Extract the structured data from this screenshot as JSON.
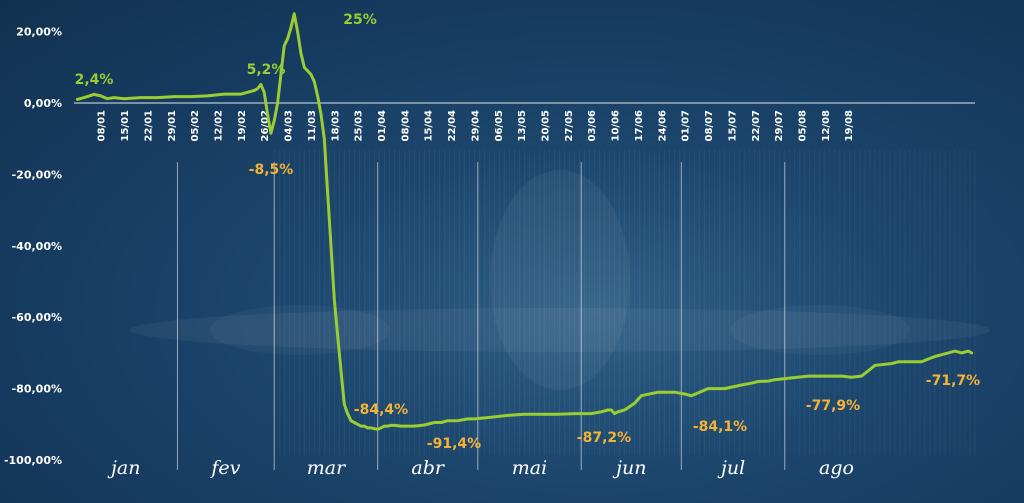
{
  "chart_data": {
    "type": "line",
    "colors": {
      "line": "#9acd32",
      "positive_label": "#9acd32",
      "negative_label": "#f5b335",
      "axis_text": "#ffffff",
      "background": "#173a5e"
    },
    "ylim": [
      -100,
      25
    ],
    "yticks": [
      "20,00%",
      "0,00%",
      "-20,00%",
      "-40,00%",
      "-60,00%",
      "-80,00%",
      "-100,00%"
    ],
    "xtick_labels": [
      "08/01",
      "15/01",
      "22/01",
      "29/01",
      "05/02",
      "12/02",
      "19/02",
      "26/02",
      "04/03",
      "11/03",
      "18/03",
      "25/03",
      "01/04",
      "08/04",
      "15/04",
      "22/04",
      "29/04",
      "06/05",
      "13/05",
      "20/05",
      "27/05",
      "03/06",
      "10/06",
      "17/06",
      "24/06",
      "01/07",
      "08/07",
      "15/07",
      "22/07",
      "29/07",
      "05/08",
      "12/08",
      "19/08"
    ],
    "months": [
      "jan",
      "fev",
      "mar",
      "abr",
      "mai",
      "jun",
      "jul",
      "ago"
    ],
    "series": [
      {
        "x": [
          1,
          3,
          6,
          8,
          10,
          12,
          15,
          20,
          25,
          30,
          35,
          40,
          45,
          50,
          52,
          54,
          55,
          56,
          57,
          58,
          59,
          60,
          61,
          62,
          63,
          64,
          65,
          66,
          67,
          68,
          69,
          70,
          71,
          72,
          73,
          74,
          75,
          76,
          77,
          78,
          79,
          80,
          81,
          82,
          83,
          84,
          85,
          86,
          87,
          88,
          89,
          90,
          91,
          92,
          93,
          94,
          95,
          96,
          98,
          100,
          102,
          105,
          108,
          110,
          112,
          115,
          118,
          120,
          125,
          130,
          135,
          140,
          145,
          150,
          155,
          158,
          160,
          161,
          162,
          163,
          165,
          168,
          170,
          175,
          180,
          183,
          185,
          190,
          195,
          200,
          203,
          205,
          208,
          210,
          215,
          220,
          225,
          230,
          233,
          236,
          238,
          240,
          245,
          247,
          250,
          252,
          254,
          256,
          258,
          260,
          262,
          264,
          266,
          268,
          269
        ],
        "y": [
          1,
          1.5,
          2.4,
          2.0,
          1.2,
          1.5,
          1.2,
          1.5,
          1.5,
          1.8,
          1.8,
          2,
          2.5,
          2.5,
          3,
          3.5,
          4,
          5.2,
          3,
          -3,
          -8.5,
          -5,
          0,
          8,
          16,
          18,
          21,
          25,
          20,
          14,
          10,
          9,
          8,
          6,
          2,
          -3,
          -10,
          -25,
          -40,
          -55,
          -65,
          -75,
          -84.4,
          -87,
          -89,
          -89.5,
          -90,
          -90.5,
          -90.5,
          -91,
          -91,
          -91.2,
          -91.4,
          -91,
          -90.5,
          -90.5,
          -90.3,
          -90.3,
          -90.5,
          -90.5,
          -90.5,
          -90.2,
          -89.5,
          -89.5,
          -89,
          -89,
          -88.5,
          -88.5,
          -88,
          -87.5,
          -87.2,
          -87.2,
          -87.2,
          -87,
          -87,
          -86.5,
          -86,
          -86,
          -87,
          -86.5,
          -86,
          -84.1,
          -82,
          -81,
          -81,
          -81.5,
          -82,
          -80,
          -80,
          -79,
          -78.5,
          -78,
          -77.9,
          -77.5,
          -77,
          -76.5,
          -76.5,
          -76.5,
          -76.8,
          -76.5,
          -75,
          -73.5,
          -73,
          -72.5,
          -72.5,
          -72.5,
          -72.5,
          -71.7,
          -71,
          -70.5,
          -70,
          -69.5,
          -70,
          -69.5,
          -70
        ]
      }
    ],
    "annotations": [
      {
        "text": "2,4%",
        "kind": "positive"
      },
      {
        "text": "5,2%",
        "kind": "positive"
      },
      {
        "text": "25%",
        "kind": "positive"
      },
      {
        "text": "-8,5%",
        "kind": "negative"
      },
      {
        "text": "-84,4%",
        "kind": "negative"
      },
      {
        "text": "-91,4%",
        "kind": "negative"
      },
      {
        "text": "-87,2%",
        "kind": "negative"
      },
      {
        "text": "-84,1%",
        "kind": "negative"
      },
      {
        "text": "-77,9%",
        "kind": "negative"
      },
      {
        "text": "-71,7%",
        "kind": "negative"
      }
    ]
  }
}
